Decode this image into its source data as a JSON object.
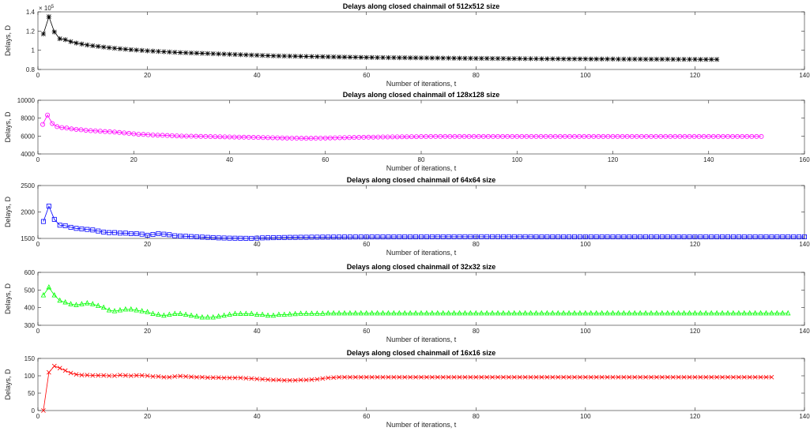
{
  "chart_data": [
    {
      "type": "line",
      "title": "Delays along closed chainmail of 512x512 size",
      "xlabel": "Number of iterations, t",
      "ylabel": "Delays, D",
      "xlim": [
        0,
        140
      ],
      "ylim": [
        0.8,
        1.4
      ],
      "xticks": [
        "0",
        "20",
        "40",
        "60",
        "80",
        "100",
        "120",
        "140"
      ],
      "yticks": [
        "0.8",
        "1",
        "1.2",
        "1.4"
      ],
      "exponent_base": "× 10",
      "exponent_power": "5",
      "marker": "star",
      "color": "#000000",
      "series": [
        {
          "x_start": 1,
          "x_end": 124,
          "values": [
            1.17,
            1.35,
            1.19,
            1.12,
            1.11,
            1.09,
            1.075,
            1.065,
            1.055,
            1.047,
            1.04,
            1.033,
            1.027,
            1.021,
            1.016,
            1.011,
            1.006,
            1.002,
            0.998,
            0.994,
            0.991,
            0.988,
            0.985,
            0.982,
            0.979,
            0.976,
            0.974,
            0.972,
            0.97,
            0.968,
            0.966,
            0.964,
            0.962,
            0.96,
            0.958,
            0.956,
            0.954,
            0.952,
            0.95,
            0.948,
            0.946,
            0.944,
            0.942,
            0.941,
            0.94,
            0.939,
            0.938,
            0.937,
            0.936,
            0.935,
            0.934,
            0.933,
            0.932,
            0.931,
            0.93,
            0.929,
            0.928,
            0.927,
            0.926,
            0.925,
            0.925,
            0.924,
            0.924,
            0.923,
            0.923,
            0.922,
            0.922,
            0.921,
            0.921,
            0.92,
            0.92,
            0.919,
            0.919,
            0.918,
            0.918,
            0.917,
            0.917,
            0.916,
            0.916,
            0.915,
            0.915,
            0.915,
            0.914,
            0.914,
            0.914,
            0.913,
            0.913,
            0.913,
            0.912,
            0.912,
            0.912,
            0.911,
            0.911,
            0.911,
            0.911,
            0.91,
            0.91,
            0.91,
            0.91,
            0.91,
            0.909,
            0.909,
            0.909,
            0.909,
            0.909,
            0.908,
            0.908,
            0.908,
            0.908,
            0.908,
            0.907,
            0.907,
            0.907,
            0.907,
            0.907,
            0.906,
            0.906,
            0.906,
            0.906,
            0.906,
            0.905,
            0.905,
            0.905,
            0.905
          ]
        }
      ]
    },
    {
      "type": "line",
      "title": "Delays along closed chainmail of 128x128 size",
      "xlabel": "Number of iterations, t",
      "ylabel": "Delays, D",
      "xlim": [
        0,
        160
      ],
      "ylim": [
        4000,
        10000
      ],
      "xticks": [
        "0",
        "20",
        "40",
        "60",
        "80",
        "100",
        "120",
        "140",
        "160"
      ],
      "yticks": [
        "4000",
        "6000",
        "8000",
        "10000"
      ],
      "marker": "circle",
      "color": "#ff00ff",
      "series": [
        {
          "x_start": 1,
          "x_end": 151,
          "values": [
            7300,
            8350,
            7400,
            7050,
            6950,
            6900,
            6800,
            6750,
            6700,
            6650,
            6600,
            6580,
            6550,
            6500,
            6480,
            6450,
            6400,
            6350,
            6300,
            6250,
            6200,
            6180,
            6150,
            6120,
            6100,
            6080,
            6060,
            6040,
            6020,
            6000,
            5990,
            5980,
            5970,
            5960,
            5950,
            5940,
            5930,
            5920,
            5910,
            5900,
            5890,
            5880,
            5870,
            5860,
            5850,
            5840,
            5830,
            5820,
            5810,
            5800,
            5790,
            5780,
            5770,
            5760,
            5750,
            5750,
            5750,
            5760,
            5770,
            5780,
            5790,
            5800,
            5810,
            5820,
            5830,
            5840,
            5850,
            5860,
            5870,
            5880,
            5890,
            5900,
            5900,
            5910,
            5910,
            5920,
            5920,
            5930,
            5930,
            5940,
            5940,
            5950,
            5950,
            5950,
            5950,
            5950,
            5950,
            5950,
            5950,
            5950,
            5950,
            5950,
            5950,
            5950,
            5950,
            5950,
            5950,
            5950,
            5950,
            5950,
            5950,
            5950,
            5950,
            5950,
            5950,
            5950,
            5950,
            5950,
            5950,
            5950,
            5950,
            5950,
            5950,
            5950,
            5950,
            5950,
            5950,
            5950,
            5950,
            5950,
            5950,
            5950,
            5950,
            5950,
            5950,
            5950,
            5950,
            5950,
            5950,
            5950,
            5950,
            5950,
            5950,
            5950,
            5950,
            5950,
            5950,
            5950,
            5950,
            5950,
            5950,
            5950,
            5950,
            5950,
            5950,
            5950,
            5950,
            5950,
            5950,
            5950,
            5950
          ]
        }
      ]
    },
    {
      "type": "line",
      "title": "Delays along closed chainmail of 64x64 size",
      "xlabel": "Number of iterations, t",
      "ylabel": "Delays, D",
      "xlim": [
        0,
        140
      ],
      "ylim": [
        1500,
        2500
      ],
      "xticks": [
        "0",
        "20",
        "40",
        "60",
        "80",
        "100",
        "120",
        "140"
      ],
      "yticks": [
        "1500",
        "2000",
        "2500"
      ],
      "marker": "square",
      "color": "#0000ff",
      "series": [
        {
          "x_start": 1,
          "x_end": 140,
          "values": [
            1820,
            2110,
            1860,
            1750,
            1740,
            1710,
            1690,
            1680,
            1670,
            1660,
            1640,
            1620,
            1610,
            1610,
            1600,
            1600,
            1590,
            1590,
            1580,
            1560,
            1575,
            1590,
            1580,
            1570,
            1550,
            1545,
            1540,
            1535,
            1530,
            1525,
            1520,
            1515,
            1510,
            1508,
            1505,
            1504,
            1503,
            1502,
            1501,
            1505,
            1510,
            1512,
            1514,
            1516,
            1518,
            1520,
            1520,
            1522,
            1522,
            1524,
            1524,
            1525,
            1525,
            1526,
            1526,
            1527,
            1527,
            1528,
            1528,
            1528,
            1529,
            1529,
            1529,
            1529,
            1530,
            1530,
            1530,
            1530,
            1530,
            1530,
            1530,
            1531,
            1531,
            1531,
            1531,
            1532,
            1532,
            1532,
            1532,
            1532,
            1532,
            1532,
            1532,
            1532,
            1532,
            1532,
            1532,
            1532,
            1532,
            1532,
            1530,
            1530,
            1530,
            1530,
            1530,
            1530,
            1530,
            1530,
            1530,
            1530,
            1530,
            1530,
            1530,
            1530,
            1530,
            1530,
            1530,
            1530,
            1530,
            1530,
            1530,
            1530,
            1530,
            1530,
            1530,
            1530,
            1530,
            1530,
            1530,
            1530,
            1530,
            1530,
            1530,
            1530,
            1530,
            1530,
            1530,
            1530,
            1530,
            1530,
            1530,
            1530,
            1530,
            1530,
            1530,
            1530,
            1530,
            1530,
            1530,
            1530
          ]
        }
      ]
    },
    {
      "type": "line",
      "title": "Delays along closed chainmail of 32x32 size",
      "xlabel": "Number of iterations, t",
      "ylabel": "Delays, D",
      "xlim": [
        0,
        140
      ],
      "ylim": [
        300,
        600
      ],
      "xticks": [
        "0",
        "20",
        "40",
        "60",
        "80",
        "100",
        "120",
        "140"
      ],
      "yticks": [
        "300",
        "400",
        "500",
        "600"
      ],
      "marker": "triangle",
      "color": "#00ff00",
      "series": [
        {
          "x_start": 1,
          "x_end": 137,
          "values": [
            470,
            515,
            470,
            440,
            430,
            420,
            415,
            420,
            425,
            420,
            410,
            400,
            385,
            380,
            385,
            390,
            390,
            385,
            380,
            375,
            365,
            360,
            355,
            360,
            365,
            365,
            360,
            355,
            350,
            345,
            345,
            345,
            350,
            355,
            360,
            365,
            365,
            365,
            365,
            360,
            360,
            355,
            355,
            360,
            360,
            362,
            364,
            366,
            366,
            366,
            366,
            366,
            368,
            368,
            368,
            368,
            368,
            368,
            368,
            368,
            368,
            368,
            368,
            368,
            368,
            368,
            368,
            368,
            368,
            368,
            368,
            368,
            368,
            368,
            368,
            368,
            368,
            368,
            368,
            368,
            368,
            368,
            368,
            368,
            368,
            368,
            368,
            368,
            368,
            368,
            368,
            368,
            368,
            368,
            368,
            368,
            368,
            368,
            368,
            368,
            368,
            368,
            368,
            368,
            368,
            368,
            368,
            368,
            368,
            368,
            368,
            368,
            368,
            368,
            368,
            368,
            368,
            368,
            368,
            368,
            368,
            368,
            368,
            368,
            368,
            368,
            368,
            368,
            368,
            368,
            368,
            368,
            368,
            368,
            368,
            368,
            368
          ]
        }
      ]
    },
    {
      "type": "line",
      "title": "Delays along closed chainmail of 16x16 size",
      "xlabel": "Number of iterations, t",
      "ylabel": "Delays, D",
      "xlim": [
        0,
        140
      ],
      "ylim": [
        0,
        150
      ],
      "xticks": [
        "0",
        "20",
        "40",
        "60",
        "80",
        "100",
        "120",
        "140"
      ],
      "yticks": [
        "0",
        "50",
        "100",
        "150"
      ],
      "marker": "x",
      "color": "#ff0000",
      "series": [
        {
          "x_start": 1,
          "x_end": 134,
          "values": [
            0,
            110,
            128,
            122,
            115,
            108,
            104,
            102,
            102,
            101,
            101,
            101,
            100,
            100,
            102,
            101,
            100,
            101,
            101,
            100,
            98,
            98,
            96,
            96,
            98,
            99,
            98,
            97,
            96,
            96,
            95,
            95,
            95,
            94,
            94,
            94,
            94,
            93,
            92,
            91,
            90,
            89,
            88,
            88,
            87,
            87,
            87,
            88,
            88,
            89,
            90,
            92,
            94,
            95,
            96,
            96,
            96,
            96,
            96,
            96,
            96,
            96,
            96,
            96,
            96,
            96,
            96,
            96,
            96,
            96,
            96,
            96,
            96,
            96,
            96,
            96,
            96,
            96,
            96,
            96,
            96,
            96,
            96,
            96,
            96,
            96,
            96,
            96,
            96,
            96,
            96,
            96,
            96,
            96,
            96,
            96,
            96,
            96,
            96,
            96,
            96,
            96,
            96,
            96,
            96,
            96,
            96,
            96,
            96,
            96,
            96,
            96,
            96,
            96,
            96,
            96,
            96,
            96,
            96,
            96,
            96,
            96,
            96,
            96,
            96,
            96,
            96,
            96,
            96,
            96,
            96,
            96,
            96,
            96
          ]
        }
      ]
    }
  ]
}
